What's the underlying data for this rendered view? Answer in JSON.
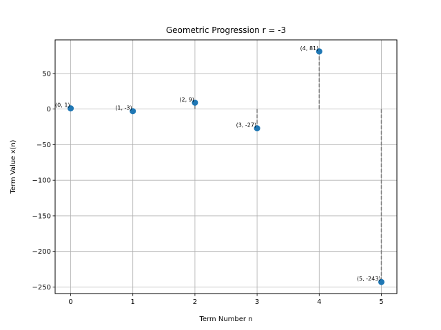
{
  "chart_data": {
    "type": "scatter",
    "title": "Geometric Progression r = -3",
    "xlabel": "Term Number n",
    "ylabel": "Term Value x(n)",
    "xlim": [
      -0.25,
      5.25
    ],
    "ylim": [
      -259.2,
      97.2
    ],
    "xticks": [
      0,
      1,
      2,
      3,
      4,
      5
    ],
    "yticks": [
      50,
      0,
      -50,
      -100,
      -150,
      -200,
      -250
    ],
    "xtick_labels": [
      "0",
      "1",
      "2",
      "3",
      "4",
      "5"
    ],
    "ytick_labels": [
      "50",
      "0",
      "−50",
      "−100",
      "−150",
      "−200",
      "−250"
    ],
    "grid": true,
    "marker_color": "#1f77b4",
    "stem_color": "#808080",
    "x": [
      0,
      1,
      2,
      3,
      4,
      5
    ],
    "y": [
      1,
      -3,
      9,
      -27,
      81,
      -243
    ],
    "point_labels": [
      "(0, 1)",
      "(1, -3)",
      "(2, 9)",
      "(3, -27)",
      "(4, 81)",
      "(5, -243)"
    ]
  }
}
